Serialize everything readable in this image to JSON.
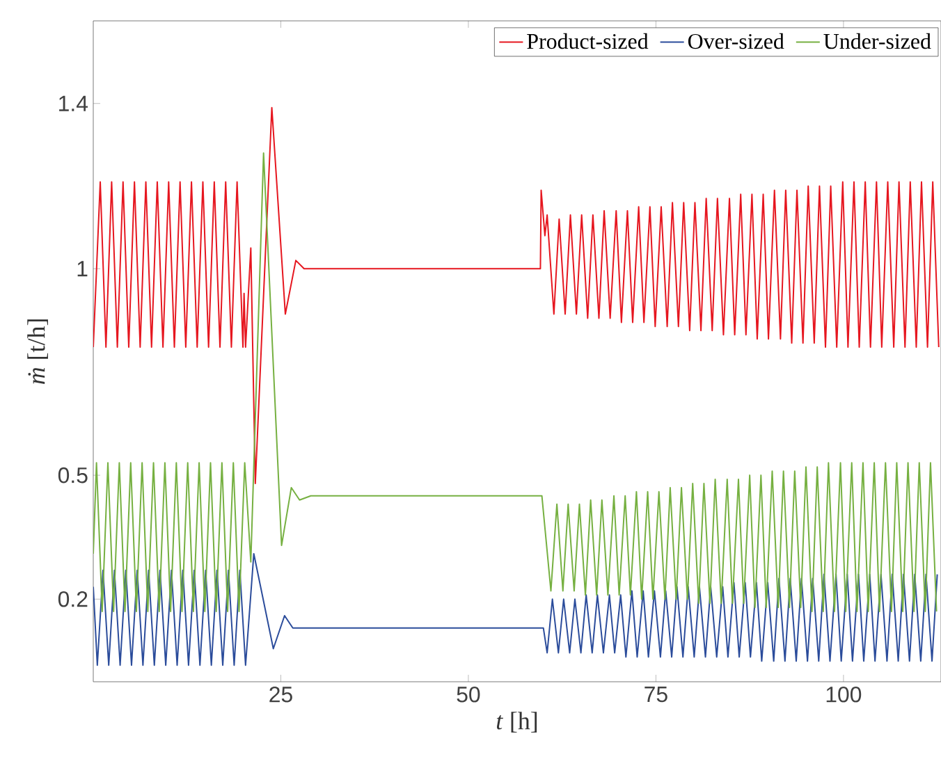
{
  "chart_data": {
    "type": "line",
    "xlabel": "*t* [h]",
    "ylabel": "*ṁ* [t/h]",
    "xlim": [
      0,
      113
    ],
    "ylim": [
      0,
      1.6
    ],
    "xticks": [
      25,
      50,
      75,
      100
    ],
    "yticks": [
      0.2,
      0.5,
      1,
      1.4
    ],
    "legend": "top right",
    "series": [
      {
        "name": "Product-sized",
        "color": "#e6161f",
        "x": [
          0,
          0.93,
          1.69,
          2.45,
          3.21,
          3.97,
          4.73,
          5.49,
          6.25,
          7.01,
          7.77,
          8.53,
          9.29,
          10.05,
          10.81,
          11.57,
          12.33,
          13.09,
          13.85,
          14.61,
          15.37,
          16.13,
          16.89,
          17.65,
          18.41,
          19.17,
          19.95,
          20.1,
          20.3,
          21.0,
          21.6,
          23.8,
          25.6,
          27.0,
          28.1,
          30,
          59.6,
          59.7,
          60.2,
          60.5,
          61.4,
          62.1,
          62.9,
          63.6,
          64.4,
          65.1,
          65.9,
          66.6,
          67.4,
          68.1,
          68.9,
          69.7,
          70.4,
          71.2,
          71.9,
          72.7,
          73.4,
          74.2,
          74.9,
          75.7,
          76.5,
          77.2,
          78.0,
          78.7,
          79.5,
          80.2,
          81.0,
          81.7,
          82.5,
          83.2,
          84.0,
          84.8,
          85.5,
          86.3,
          87.0,
          87.8,
          88.5,
          89.3,
          90.0,
          90.8,
          91.6,
          92.3,
          93.1,
          93.8,
          94.6,
          95.3,
          96.1,
          96.8,
          97.6,
          98.3,
          99.1,
          99.9,
          100.6,
          101.4,
          102.1,
          102.9,
          103.6,
          104.4,
          105.1,
          105.9,
          106.7,
          107.4,
          108.2,
          108.9,
          109.7,
          110.4,
          111.2,
          111.9,
          112.7
        ],
        "values": [
          0.81,
          1.21,
          0.81,
          1.21,
          0.81,
          1.21,
          0.81,
          1.21,
          0.81,
          1.21,
          0.81,
          1.21,
          0.81,
          1.21,
          0.81,
          1.21,
          0.81,
          1.21,
          0.81,
          1.21,
          0.81,
          1.21,
          0.81,
          1.21,
          0.81,
          1.21,
          0.81,
          0.94,
          0.81,
          1.05,
          0.48,
          1.39,
          0.89,
          1.02,
          1.0,
          1.0,
          1.0,
          1.19,
          1.08,
          1.13,
          0.89,
          1.12,
          0.89,
          1.13,
          0.89,
          1.13,
          0.88,
          1.13,
          0.88,
          1.14,
          0.88,
          1.14,
          0.87,
          1.14,
          0.87,
          1.15,
          0.87,
          1.15,
          0.86,
          1.15,
          0.86,
          1.16,
          0.86,
          1.16,
          0.85,
          1.16,
          0.85,
          1.17,
          0.85,
          1.17,
          0.84,
          1.17,
          0.84,
          1.18,
          0.84,
          1.18,
          0.83,
          1.18,
          0.83,
          1.19,
          0.83,
          1.19,
          0.82,
          1.19,
          0.82,
          1.2,
          0.82,
          1.2,
          0.81,
          1.2,
          0.81,
          1.21,
          0.81,
          1.21,
          0.81,
          1.21,
          0.81,
          1.21,
          0.81,
          1.21,
          0.81,
          1.21,
          0.81,
          1.21,
          0.81,
          1.21,
          0.81,
          1.21,
          0.81
        ]
      },
      {
        "name": "Over-sized",
        "color": "#2b4c9b",
        "x": [
          0,
          0.54,
          1.3,
          2.06,
          2.82,
          3.58,
          4.34,
          5.1,
          5.86,
          6.62,
          7.38,
          8.14,
          8.9,
          9.66,
          10.42,
          11.18,
          11.94,
          12.7,
          13.46,
          14.22,
          14.98,
          15.74,
          16.5,
          17.26,
          18.02,
          18.78,
          19.54,
          20.3,
          21.4,
          24.0,
          25.5,
          26.6,
          28,
          60.0,
          60.5,
          61.2,
          62.0,
          62.7,
          63.5,
          64.2,
          65.0,
          65.7,
          66.5,
          67.2,
          68.0,
          68.8,
          69.5,
          70.3,
          71.0,
          71.8,
          72.5,
          73.3,
          74.0,
          74.8,
          75.6,
          76.3,
          77.1,
          77.8,
          78.6,
          79.3,
          80.1,
          80.8,
          81.6,
          82.3,
          83.1,
          83.9,
          84.6,
          85.4,
          86.1,
          86.9,
          87.6,
          88.4,
          89.1,
          89.9,
          90.7,
          91.4,
          92.2,
          92.9,
          93.7,
          94.4,
          95.2,
          95.9,
          96.7,
          97.4,
          98.2,
          99.0,
          99.7,
          100.5,
          101.2,
          102.0,
          102.7,
          103.5,
          104.2,
          105.0,
          105.8,
          106.5,
          107.3,
          108.0,
          108.8,
          109.5,
          110.3,
          111.0,
          111.8,
          112.5
        ],
        "values": [
          0.23,
          0.04,
          0.27,
          0.04,
          0.27,
          0.04,
          0.27,
          0.04,
          0.27,
          0.04,
          0.27,
          0.04,
          0.27,
          0.04,
          0.27,
          0.04,
          0.27,
          0.04,
          0.27,
          0.04,
          0.27,
          0.04,
          0.27,
          0.04,
          0.27,
          0.04,
          0.27,
          0.04,
          0.31,
          0.08,
          0.16,
          0.13,
          0.13,
          0.13,
          0.07,
          0.2,
          0.07,
          0.2,
          0.07,
          0.2,
          0.07,
          0.21,
          0.07,
          0.21,
          0.07,
          0.21,
          0.07,
          0.21,
          0.06,
          0.22,
          0.06,
          0.22,
          0.06,
          0.22,
          0.06,
          0.22,
          0.06,
          0.23,
          0.06,
          0.23,
          0.06,
          0.23,
          0.06,
          0.23,
          0.06,
          0.23,
          0.06,
          0.24,
          0.06,
          0.24,
          0.06,
          0.24,
          0.05,
          0.24,
          0.05,
          0.25,
          0.05,
          0.25,
          0.05,
          0.25,
          0.05,
          0.25,
          0.05,
          0.26,
          0.05,
          0.26,
          0.05,
          0.26,
          0.05,
          0.26,
          0.05,
          0.26,
          0.05,
          0.26,
          0.05,
          0.26,
          0.05,
          0.26,
          0.05,
          0.26,
          0.05,
          0.26,
          0.05,
          0.26
        ]
      },
      {
        "name": "Under-sized",
        "color": "#76b041",
        "x": [
          0,
          0.43,
          1.19,
          1.95,
          2.71,
          3.47,
          4.23,
          4.99,
          5.75,
          6.51,
          7.27,
          8.03,
          8.79,
          9.55,
          10.31,
          11.07,
          11.83,
          12.59,
          13.35,
          14.11,
          14.87,
          15.63,
          16.39,
          17.15,
          17.91,
          18.67,
          19.43,
          20.19,
          21.0,
          22.7,
          25.1,
          26.4,
          27.5,
          29,
          59.8,
          61.0,
          61.8,
          62.6,
          63.3,
          64.1,
          64.8,
          65.6,
          66.3,
          67.1,
          67.8,
          68.6,
          69.4,
          70.1,
          70.9,
          71.6,
          72.4,
          73.1,
          73.9,
          74.6,
          75.4,
          76.2,
          76.9,
          77.7,
          78.4,
          79.2,
          79.9,
          80.7,
          81.4,
          82.2,
          82.9,
          83.7,
          84.5,
          85.2,
          86.0,
          86.7,
          87.5,
          88.2,
          89.0,
          89.7,
          90.5,
          91.3,
          92.0,
          92.8,
          93.5,
          94.3,
          95.0,
          95.8,
          96.5,
          97.3,
          98.0,
          98.8,
          99.6,
          100.3,
          101.1,
          101.8,
          102.6,
          103.3,
          104.1,
          104.8,
          105.6,
          106.4,
          107.1,
          107.9,
          108.6,
          109.4,
          110.1,
          110.9,
          111.6,
          112.4
        ],
        "values": [
          0.31,
          0.53,
          0.17,
          0.53,
          0.17,
          0.53,
          0.17,
          0.53,
          0.17,
          0.53,
          0.17,
          0.53,
          0.17,
          0.53,
          0.17,
          0.53,
          0.17,
          0.53,
          0.17,
          0.53,
          0.17,
          0.53,
          0.17,
          0.53,
          0.17,
          0.53,
          0.17,
          0.53,
          0.29,
          1.28,
          0.33,
          0.47,
          0.44,
          0.45,
          0.45,
          0.22,
          0.43,
          0.22,
          0.43,
          0.22,
          0.43,
          0.21,
          0.44,
          0.21,
          0.44,
          0.21,
          0.45,
          0.21,
          0.45,
          0.21,
          0.46,
          0.2,
          0.46,
          0.2,
          0.46,
          0.2,
          0.47,
          0.2,
          0.47,
          0.2,
          0.48,
          0.19,
          0.48,
          0.19,
          0.49,
          0.19,
          0.49,
          0.19,
          0.49,
          0.19,
          0.5,
          0.18,
          0.5,
          0.18,
          0.51,
          0.18,
          0.51,
          0.18,
          0.51,
          0.18,
          0.52,
          0.17,
          0.52,
          0.17,
          0.53,
          0.17,
          0.53,
          0.17,
          0.53,
          0.17,
          0.53,
          0.17,
          0.53,
          0.17,
          0.53,
          0.17,
          0.53,
          0.17,
          0.53,
          0.17,
          0.53,
          0.17,
          0.53,
          0.17
        ]
      }
    ]
  }
}
